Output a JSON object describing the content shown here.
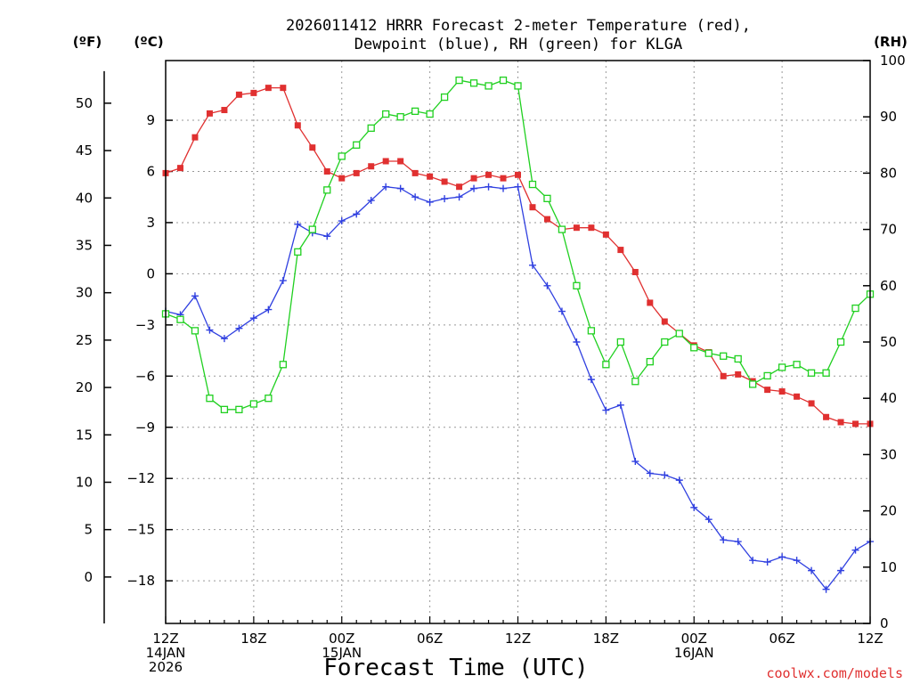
{
  "title_lines": [
    "2026011412 HRRR Forecast 2-meter Temperature (red),",
    "Dewpoint (blue), RH (green) for KLGA"
  ],
  "credit": "coolwx.com/models",
  "chart_data": {
    "type": "line",
    "xlabel": "Forecast Time (UTC)",
    "x_range_hours": [
      0,
      48
    ],
    "x_ticks": [
      {
        "hour": 0,
        "lines": [
          "12Z",
          "14JAN",
          "2026"
        ]
      },
      {
        "hour": 6,
        "lines": [
          "18Z"
        ]
      },
      {
        "hour": 12,
        "lines": [
          "00Z",
          "15JAN"
        ]
      },
      {
        "hour": 18,
        "lines": [
          "06Z"
        ]
      },
      {
        "hour": 24,
        "lines": [
          "12Z"
        ]
      },
      {
        "hour": 30,
        "lines": [
          "18Z"
        ]
      },
      {
        "hour": 36,
        "lines": [
          "00Z",
          "16JAN"
        ]
      },
      {
        "hour": 42,
        "lines": [
          "06Z"
        ]
      },
      {
        "hour": 48,
        "lines": [
          "12Z"
        ]
      }
    ],
    "celsius_axis": {
      "label": "(ºC)",
      "range": [
        -20.5,
        12.5
      ],
      "ticks": [
        9,
        6,
        3,
        0,
        -3,
        -6,
        -9,
        -12,
        -15,
        -18
      ]
    },
    "fahrenheit_axis": {
      "label": "(ºF)",
      "ticks": [
        50,
        45,
        40,
        35,
        30,
        25,
        20,
        15,
        10,
        5,
        0
      ]
    },
    "rh_axis": {
      "label": "(RH)",
      "range": [
        0,
        100
      ],
      "ticks": [
        100,
        90,
        80,
        70,
        60,
        50,
        40,
        30,
        20,
        10,
        0
      ]
    },
    "grid": true,
    "series": [
      {
        "name": "Temperature",
        "axis": "celsius",
        "color": "#e03030",
        "marker": "filled-square",
        "x": [
          0,
          1,
          2,
          3,
          4,
          5,
          6,
          7,
          8,
          9,
          10,
          11,
          12,
          13,
          14,
          15,
          16,
          17,
          18,
          19,
          20,
          21,
          22,
          23,
          24,
          25,
          26,
          27,
          28,
          29,
          30,
          31,
          32,
          33,
          34,
          35,
          36,
          37,
          38,
          39,
          40,
          41,
          42,
          43,
          44,
          45,
          46,
          47,
          48
        ],
        "values": [
          5.9,
          6.2,
          8.0,
          9.4,
          9.6,
          10.5,
          10.6,
          10.9,
          10.9,
          8.7,
          7.4,
          6.0,
          5.6,
          5.9,
          6.3,
          6.6,
          6.6,
          5.9,
          5.7,
          5.4,
          5.1,
          5.6,
          5.8,
          5.6,
          5.8,
          3.9,
          3.2,
          2.6,
          2.7,
          2.7,
          2.3,
          1.4,
          0.1,
          -1.7,
          -2.8,
          -3.5,
          -4.2,
          -4.6,
          -6.0,
          -5.9,
          -6.3,
          -6.8,
          -6.9,
          -7.2,
          -7.6,
          -8.4,
          -8.7,
          -8.8,
          -8.8
        ]
      },
      {
        "name": "Dewpoint",
        "axis": "celsius",
        "color": "#3040e0",
        "marker": "plus",
        "x": [
          0,
          1,
          2,
          3,
          4,
          5,
          6,
          7,
          8,
          9,
          10,
          11,
          12,
          13,
          14,
          15,
          16,
          17,
          18,
          19,
          20,
          21,
          22,
          23,
          24,
          25,
          26,
          27,
          28,
          29,
          30,
          31,
          32,
          33,
          34,
          35,
          36,
          37,
          38,
          39,
          40,
          41,
          42,
          43,
          44,
          45,
          46,
          47,
          48
        ],
        "values": [
          -2.2,
          -2.4,
          -1.3,
          -3.3,
          -3.8,
          -3.2,
          -2.6,
          -2.1,
          -0.4,
          2.9,
          2.4,
          2.2,
          3.1,
          3.5,
          4.3,
          5.1,
          5.0,
          4.5,
          4.2,
          4.4,
          4.5,
          5.0,
          5.1,
          5.0,
          5.1,
          0.5,
          -0.7,
          -2.2,
          -4.0,
          -6.2,
          -8.0,
          -7.7,
          -11.0,
          -11.7,
          -11.8,
          -12.1,
          -13.7,
          -14.4,
          -15.6,
          -15.7,
          -16.8,
          -16.9,
          -16.6,
          -16.8,
          -17.4,
          -18.5,
          -17.4,
          -16.2,
          -15.7
        ]
      },
      {
        "name": "RH",
        "axis": "rh",
        "color": "#20d020",
        "marker": "open-square",
        "x": [
          0,
          1,
          2,
          3,
          4,
          5,
          6,
          7,
          8,
          9,
          10,
          11,
          12,
          13,
          14,
          15,
          16,
          17,
          18,
          19,
          20,
          21,
          22,
          23,
          24,
          25,
          26,
          27,
          28,
          29,
          30,
          31,
          32,
          33,
          34,
          35,
          36,
          37,
          38,
          39,
          40,
          41,
          42,
          43,
          44,
          45,
          46,
          47,
          48
        ],
        "values": [
          55,
          54,
          52,
          40,
          38,
          38,
          39,
          40,
          46,
          66,
          70,
          77,
          83,
          85,
          88,
          90.5,
          90,
          91,
          90.5,
          93.5,
          96.5,
          96,
          95.5,
          96.5,
          95.5,
          78,
          75.5,
          70,
          60,
          52,
          46,
          50,
          43,
          46.5,
          50,
          51.5,
          49,
          48,
          47.5,
          47,
          42.5,
          44,
          45.5,
          46,
          44.5,
          44.5,
          50,
          56,
          58.5
        ]
      }
    ]
  }
}
